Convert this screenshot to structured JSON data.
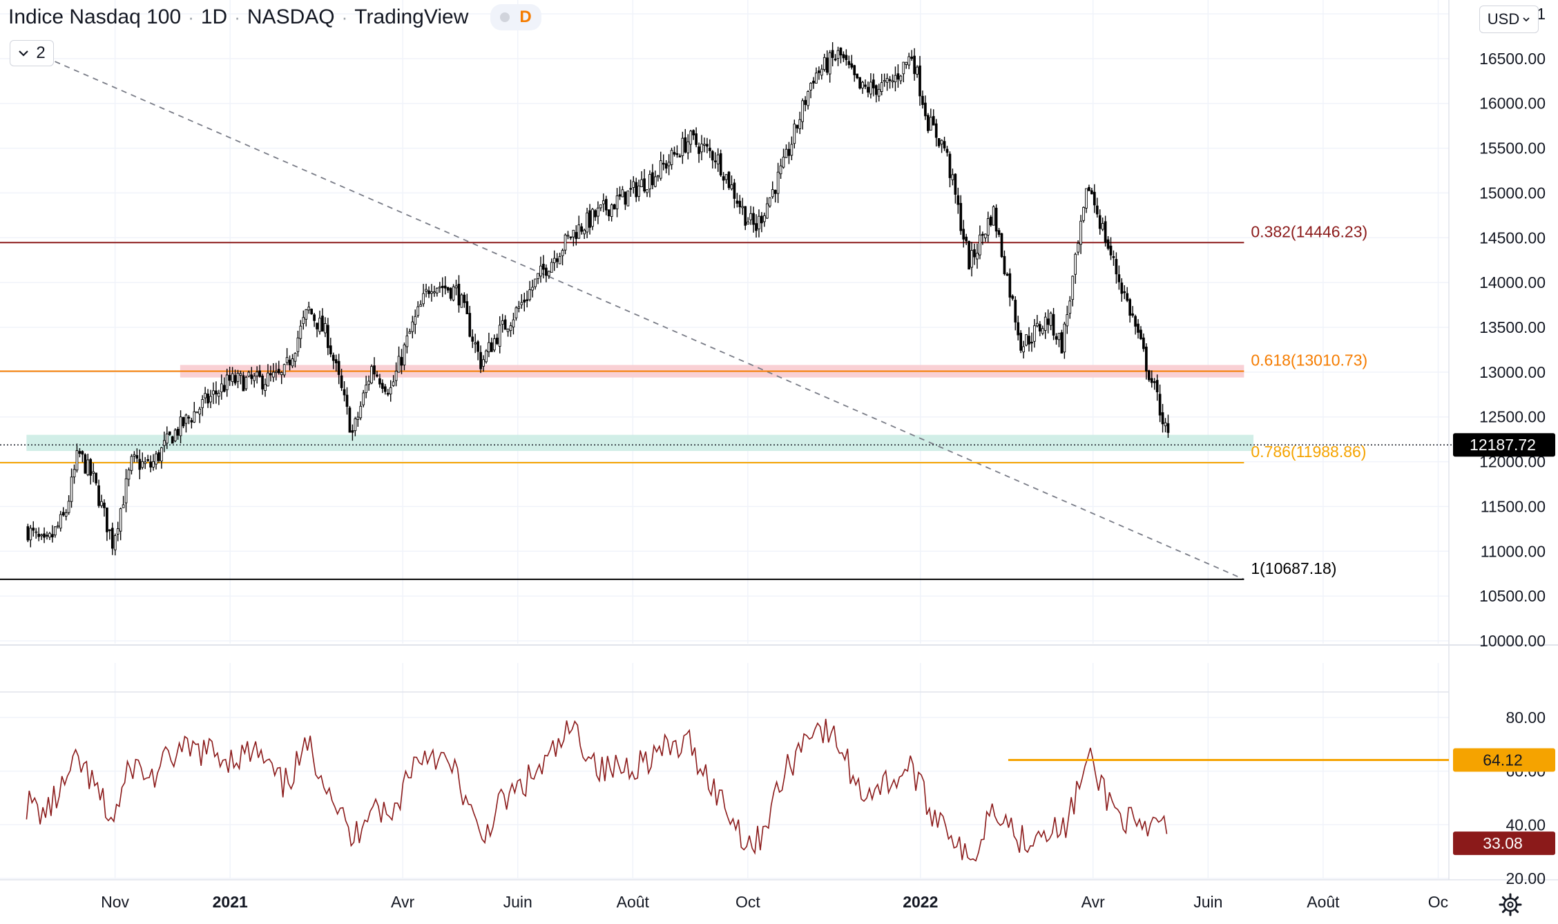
{
  "header": {
    "symbol": "Indice Nasdaq 100",
    "interval": "1D",
    "exchange": "NASDAQ",
    "source": "TradingView",
    "badge_letter": "D",
    "collapse_count": "2",
    "currency": "USD"
  },
  "icons": {
    "collapse": "chevron-down-icon",
    "currency_dropdown": "chevron-down-icon",
    "settings": "gear-icon"
  },
  "colors": {
    "candles": "#000000",
    "fib_0382": "#8b1a1a",
    "fib_0618": "#f57c00",
    "fib_0786": "#f5a300",
    "fib_1": "#000000",
    "zone_red": "#f8c8cc",
    "zone_teal": "#c9ebe3",
    "rsi_line": "#8b1a1a",
    "rsi_level": "#f5a300",
    "last_price_bg": "#000000",
    "rsi_last_bg": "#8b1a1a"
  },
  "chart_data": [
    {
      "type": "candlestick",
      "title": "Indice Nasdaq 100 · 1D · NASDAQ",
      "y_axis_ticks": [
        "10000.00",
        "10500.00",
        "11000.00",
        "11500.00",
        "12000.00",
        "12500.00",
        "13000.00",
        "13500.00",
        "14000.00",
        "14500.00",
        "15000.00",
        "15500.00",
        "16000.00",
        "16500.00",
        "1"
      ],
      "ylim": [
        10000,
        17000
      ],
      "x_axis_ticks": [
        "Nov",
        "2021",
        "Avr",
        "Juin",
        "Août",
        "Oct",
        "2022",
        "Avr",
        "Juin",
        "Août",
        "Oc"
      ],
      "x_range": [
        "2020-09-15",
        "2022-10-20"
      ],
      "last_price": "12187.72",
      "series": [
        {
          "name": "close",
          "points": [
            [
              "2020-09-15",
              11250
            ],
            [
              "2020-09-25",
              11050
            ],
            [
              "2020-10-05",
              11400
            ],
            [
              "2020-10-12",
              12100
            ],
            [
              "2020-10-20",
              11800
            ],
            [
              "2020-10-30",
              11100
            ],
            [
              "2020-11-10",
              12000
            ],
            [
              "2020-11-20",
              11950
            ],
            [
              "2020-12-01",
              12300
            ],
            [
              "2020-12-15",
              12600
            ],
            [
              "2020-12-31",
              12900
            ],
            [
              "2021-01-15",
              12900
            ],
            [
              "2021-01-29",
              12950
            ],
            [
              "2021-02-12",
              13700
            ],
            [
              "2021-02-22",
              13400
            ],
            [
              "2021-03-05",
              12300
            ],
            [
              "2021-03-15",
              13050
            ],
            [
              "2021-03-25",
              12800
            ],
            [
              "2021-04-05",
              13450
            ],
            [
              "2021-04-16",
              14000
            ],
            [
              "2021-04-30",
              13900
            ],
            [
              "2021-05-12",
              13100
            ],
            [
              "2021-05-20",
              13400
            ],
            [
              "2021-06-01",
              13700
            ],
            [
              "2021-06-15",
              14150
            ],
            [
              "2021-06-30",
              14550
            ],
            [
              "2021-07-15",
              14800
            ],
            [
              "2021-07-30",
              15000
            ],
            [
              "2021-08-15",
              15250
            ],
            [
              "2021-08-31",
              15600
            ],
            [
              "2021-09-15",
              15400
            ],
            [
              "2021-09-30",
              14750
            ],
            [
              "2021-10-05",
              14600
            ],
            [
              "2021-10-20",
              15300
            ],
            [
              "2021-11-05",
              16300
            ],
            [
              "2021-11-19",
              16550
            ],
            [
              "2021-11-30",
              16150
            ],
            [
              "2021-12-15",
              16200
            ],
            [
              "2021-12-27",
              16550
            ],
            [
              "2022-01-05",
              15800
            ],
            [
              "2022-01-14",
              15500
            ],
            [
              "2022-01-27",
              14200
            ],
            [
              "2022-02-09",
              14800
            ],
            [
              "2022-02-24",
              13300
            ],
            [
              "2022-03-08",
              13600
            ],
            [
              "2022-03-15",
              13300
            ],
            [
              "2022-03-29",
              15100
            ],
            [
              "2022-04-12",
              14200
            ],
            [
              "2022-04-22",
              13600
            ],
            [
              "2022-04-29",
              13100
            ],
            [
              "2022-05-06",
              12600
            ],
            [
              "2022-05-11",
              12187.72
            ]
          ]
        }
      ],
      "fibonacci_levels": [
        {
          "label": "0.382(14446.23)",
          "value": 14446.23
        },
        {
          "label": "0.618(13010.73)",
          "value": 13010.73
        },
        {
          "label": "0.786(11988.86)",
          "value": 11988.86
        },
        {
          "label": "1(10687.18)",
          "value": 10687.18
        }
      ],
      "zones": [
        {
          "from": 12940,
          "to": 13080,
          "start": "2020-12-05",
          "end": "2022-06-20",
          "color": "red"
        },
        {
          "from": 12120,
          "to": 12300,
          "start": "2020-09-15",
          "end": "2022-06-25",
          "color": "teal"
        }
      ],
      "trendline": {
        "start": [
          "2020-09-20",
          16560
        ],
        "end": [
          "2022-06-20",
          10687
        ]
      },
      "grid": true
    },
    {
      "type": "line",
      "title": "",
      "y_axis_ticks": [
        "20.00",
        "40.00",
        "60.00",
        "80.00"
      ],
      "ylim": [
        20,
        90
      ],
      "last_value": "33.08",
      "level": {
        "label": "64.12",
        "value": 64.12,
        "start": "2022-02-17"
      },
      "series": [
        {
          "points": [
            [
              "2020-09-15",
              48
            ],
            [
              "2020-09-25",
              44
            ],
            [
              "2020-10-05",
              55
            ],
            [
              "2020-10-12",
              64
            ],
            [
              "2020-10-22",
              52
            ],
            [
              "2020-10-30",
              41
            ],
            [
              "2020-11-10",
              63
            ],
            [
              "2020-11-20",
              57
            ],
            [
              "2020-12-01",
              66
            ],
            [
              "2020-12-15",
              68
            ],
            [
              "2020-12-31",
              65
            ],
            [
              "2021-01-15",
              67
            ],
            [
              "2021-01-29",
              54
            ],
            [
              "2021-02-12",
              69
            ],
            [
              "2021-02-22",
              56
            ],
            [
              "2021-03-05",
              33
            ],
            [
              "2021-03-15",
              50
            ],
            [
              "2021-03-25",
              41
            ],
            [
              "2021-04-05",
              62
            ],
            [
              "2021-04-16",
              68
            ],
            [
              "2021-04-30",
              58
            ],
            [
              "2021-05-12",
              33
            ],
            [
              "2021-05-20",
              46
            ],
            [
              "2021-06-01",
              53
            ],
            [
              "2021-06-15",
              62
            ],
            [
              "2021-06-30",
              76
            ],
            [
              "2021-07-15",
              60
            ],
            [
              "2021-07-30",
              62
            ],
            [
              "2021-08-15",
              67
            ],
            [
              "2021-08-31",
              70
            ],
            [
              "2021-09-15",
              52
            ],
            [
              "2021-09-30",
              35
            ],
            [
              "2021-10-05",
              32
            ],
            [
              "2021-10-20",
              58
            ],
            [
              "2021-11-05",
              78
            ],
            [
              "2021-11-19",
              70
            ],
            [
              "2021-11-30",
              52
            ],
            [
              "2021-12-15",
              56
            ],
            [
              "2021-12-27",
              62
            ],
            [
              "2022-01-05",
              46
            ],
            [
              "2022-01-14",
              42
            ],
            [
              "2022-01-27",
              24
            ],
            [
              "2022-02-09",
              49
            ],
            [
              "2022-02-24",
              34
            ],
            [
              "2022-03-08",
              40
            ],
            [
              "2022-03-15",
              36
            ],
            [
              "2022-03-29",
              64.12
            ],
            [
              "2022-04-12",
              46
            ],
            [
              "2022-04-22",
              40
            ],
            [
              "2022-04-29",
              35
            ],
            [
              "2022-05-06",
              44
            ],
            [
              "2022-05-11",
              33.08
            ]
          ]
        }
      ],
      "grid": true
    }
  ]
}
